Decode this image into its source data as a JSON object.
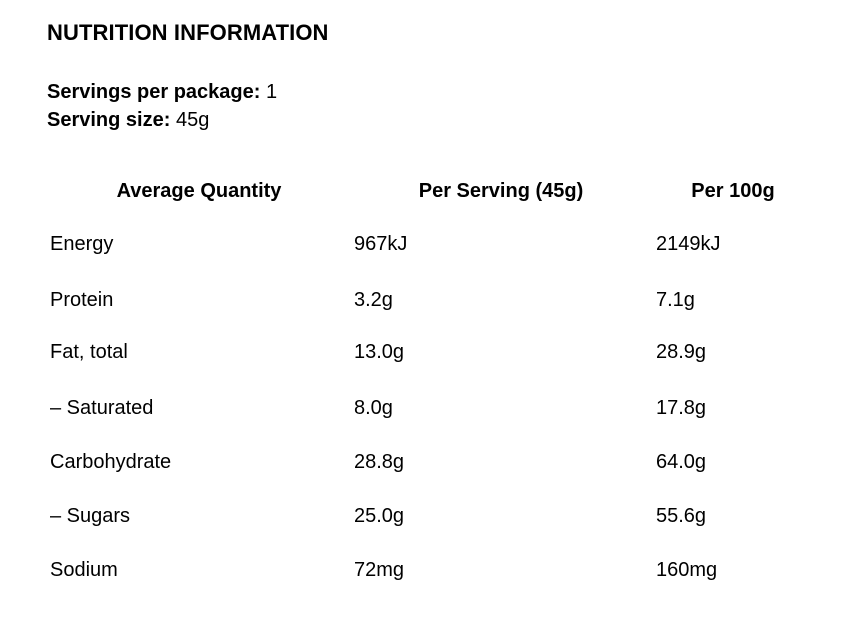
{
  "panel": {
    "title": "NUTRITION INFORMATION",
    "servings_label": "Servings per package:",
    "servings_value": "1",
    "serving_size_label": "Serving size:",
    "serving_size_value": "45g"
  },
  "table": {
    "headers": [
      "Average Quantity",
      "Per Serving (45g)",
      "Per 100g"
    ],
    "rows": [
      {
        "name": "Energy",
        "per_serving": "967kJ",
        "per_100g": "2149kJ"
      },
      {
        "name": "Protein",
        "per_serving": "3.2g",
        "per_100g": "7.1g"
      },
      {
        "name": "Fat, total",
        "per_serving": "13.0g",
        "per_100g": "28.9g"
      },
      {
        "name": "– Saturated",
        "per_serving": "8.0g",
        "per_100g": "17.8g"
      },
      {
        "name": "Carbohydrate",
        "per_serving": "28.8g",
        "per_100g": "64.0g"
      },
      {
        "name": "– Sugars",
        "per_serving": "25.0g",
        "per_100g": "55.6g"
      },
      {
        "name": "Sodium",
        "per_serving": "72mg",
        "per_100g": "160mg"
      }
    ]
  }
}
